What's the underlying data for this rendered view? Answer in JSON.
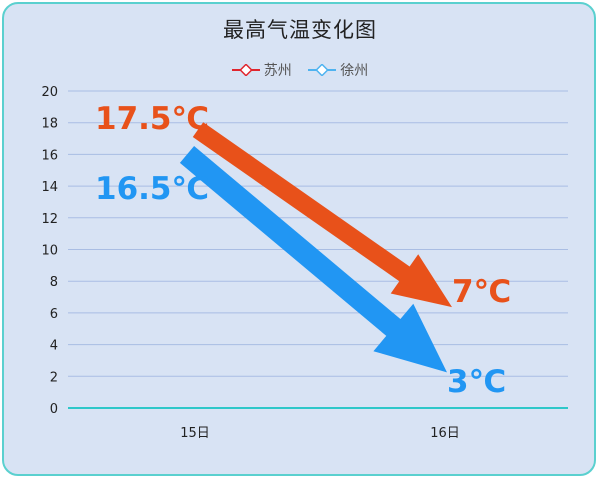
{
  "chart_data": {
    "type": "line",
    "title": "最高气温变化图",
    "categories": [
      "15日",
      "16日"
    ],
    "series": [
      {
        "name": "苏州",
        "values": [
          17.5,
          7
        ],
        "color": "#e8511a",
        "legend_color": "#e0262e"
      },
      {
        "name": "徐州",
        "values": [
          16.5,
          3
        ],
        "color": "#2196f3",
        "legend_color": "#4fb3f0"
      }
    ],
    "annotations": [
      {
        "text": "17.5℃",
        "color": "#e8511a"
      },
      {
        "text": "7℃",
        "color": "#e8511a"
      },
      {
        "text": "16.5℃",
        "color": "#2196f3"
      },
      {
        "text": "3℃",
        "color": "#2196f3"
      }
    ],
    "ylim": [
      0,
      20
    ],
    "yticks": [
      0,
      2,
      4,
      6,
      8,
      10,
      12,
      14,
      16,
      18,
      20
    ],
    "grid": true,
    "legend_position": "top"
  }
}
